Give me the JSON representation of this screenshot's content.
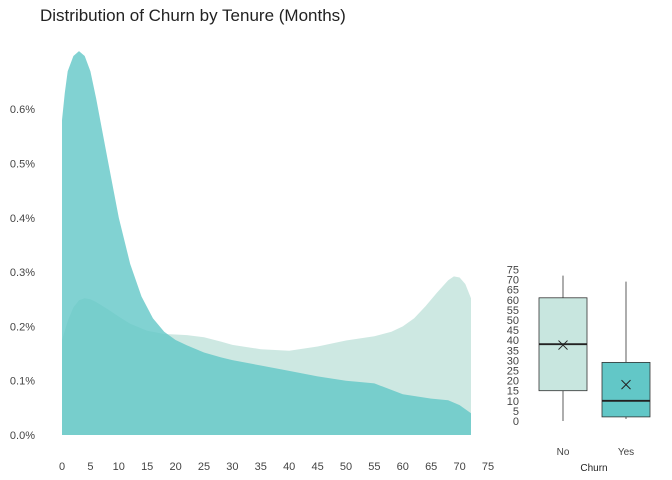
{
  "title": "Distribution of Churn by Tenure (Months)",
  "colors": {
    "no": "#c8e6df",
    "yes": "#62c7c7",
    "box_stroke": "#333333"
  },
  "chart_data": [
    {
      "type": "area",
      "title": "Distribution of Churn by Tenure (Months)",
      "xlim": [
        0,
        72
      ],
      "ylim": [
        0,
        0.0071
      ],
      "x_ticks": [
        "0",
        "5",
        "10",
        "15",
        "20",
        "25",
        "30",
        "35",
        "40",
        "45",
        "50",
        "55",
        "60",
        "65",
        "70",
        "75"
      ],
      "y_ticks": [
        "0.0%",
        "0.1%",
        "0.2%",
        "0.3%",
        "0.4%",
        "0.5%",
        "0.6%"
      ],
      "grid": false,
      "series": [
        {
          "color": "#c8e6df",
          "opacity": 0.9,
          "x": [
            0,
            1,
            2,
            3,
            4,
            5,
            6,
            8,
            10,
            12,
            15,
            18,
            20,
            22,
            25,
            28,
            30,
            35,
            40,
            45,
            50,
            55,
            58,
            60,
            62,
            64,
            66,
            68,
            69,
            70,
            71,
            72
          ],
          "y": [
            0.00175,
            0.0021,
            0.00235,
            0.00248,
            0.00252,
            0.0025,
            0.00245,
            0.00232,
            0.00218,
            0.00205,
            0.00192,
            0.00186,
            0.00185,
            0.00184,
            0.0018,
            0.00172,
            0.00166,
            0.00158,
            0.00155,
            0.00163,
            0.00174,
            0.00182,
            0.0019,
            0.002,
            0.00215,
            0.00237,
            0.00262,
            0.00285,
            0.00292,
            0.0029,
            0.00278,
            0.00252
          ]
        },
        {
          "color": "#62c7c7",
          "opacity": 0.8,
          "x": [
            0,
            0.5,
            1,
            2,
            3,
            4,
            5,
            6,
            8,
            10,
            12,
            14,
            16,
            18,
            20,
            22,
            25,
            28,
            30,
            35,
            40,
            45,
            50,
            55,
            60,
            65,
            68,
            70,
            72
          ],
          "y": [
            0.0058,
            0.0063,
            0.0067,
            0.00698,
            0.00707,
            0.00698,
            0.0067,
            0.0062,
            0.0051,
            0.004,
            0.00315,
            0.00255,
            0.00215,
            0.0019,
            0.00175,
            0.00165,
            0.00152,
            0.00143,
            0.00138,
            0.00128,
            0.00118,
            0.00108,
            0.001,
            0.00095,
            0.00075,
            0.00067,
            0.00064,
            0.00055,
            0.0004
          ]
        }
      ]
    },
    {
      "type": "box",
      "xlabel": "Churn",
      "categories": [
        "No",
        "Yes"
      ],
      "y_ticks": [
        "0",
        "5",
        "10",
        "15",
        "20",
        "25",
        "30",
        "35",
        "40",
        "45",
        "50",
        "55",
        "60",
        "65",
        "70",
        "75"
      ],
      "ylim": [
        0,
        75
      ],
      "boxes": [
        {
          "category": "No",
          "min": 0,
          "q1": 15,
          "median": 38,
          "q3": 61,
          "max": 72,
          "mean": 37.6,
          "color": "#c8e6df"
        },
        {
          "category": "Yes",
          "min": 1,
          "q1": 2,
          "median": 10,
          "q3": 29,
          "max": 69,
          "mean": 18,
          "color": "#62c7c7"
        }
      ]
    }
  ]
}
